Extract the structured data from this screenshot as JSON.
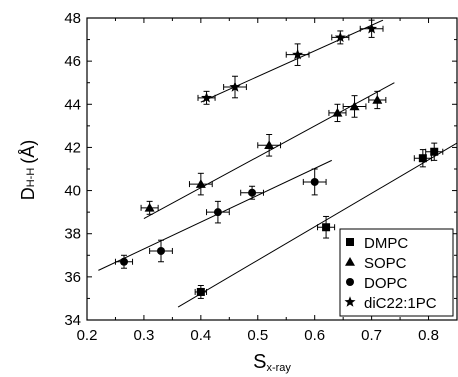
{
  "chart_data": {
    "type": "scatter",
    "xlabel": {
      "main": "S",
      "sub": "x-ray"
    },
    "ylabel": {
      "main": "D",
      "sub": "H-H",
      "unit": "(Å)"
    },
    "xlim": [
      0.2,
      0.85
    ],
    "ylim": [
      34,
      48
    ],
    "xticks": [
      0.2,
      0.3,
      0.4,
      0.5,
      0.6,
      0.7,
      0.8
    ],
    "yticks": [
      34,
      36,
      38,
      40,
      42,
      44,
      46,
      48
    ],
    "x_tick_labels": [
      "0.2",
      "0.3",
      "0.4",
      "0.5",
      "0.6",
      "0.7",
      "0.8"
    ],
    "y_tick_labels": [
      "34",
      "36",
      "38",
      "40",
      "42",
      "44",
      "46",
      "48"
    ],
    "legend_position": "bottom-right",
    "series": [
      {
        "name": "DMPC",
        "marker": "square",
        "points": [
          {
            "x": 0.4,
            "y": 35.3,
            "xerr": 0.01,
            "yerr": 0.3
          },
          {
            "x": 0.62,
            "y": 38.3,
            "xerr": 0.015,
            "yerr": 0.5
          },
          {
            "x": 0.79,
            "y": 41.5,
            "xerr": 0.015,
            "yerr": 0.4
          },
          {
            "x": 0.81,
            "y": 41.8,
            "xerr": 0.015,
            "yerr": 0.4
          }
        ],
        "fit": [
          [
            0.36,
            34.6
          ],
          [
            0.85,
            42.2
          ]
        ]
      },
      {
        "name": "SOPC",
        "marker": "triangle",
        "points": [
          {
            "x": 0.31,
            "y": 39.2,
            "xerr": 0.015,
            "yerr": 0.3
          },
          {
            "x": 0.4,
            "y": 40.3,
            "xerr": 0.02,
            "yerr": 0.5
          },
          {
            "x": 0.52,
            "y": 42.1,
            "xerr": 0.02,
            "yerr": 0.5
          },
          {
            "x": 0.64,
            "y": 43.6,
            "xerr": 0.015,
            "yerr": 0.4
          },
          {
            "x": 0.67,
            "y": 43.9,
            "xerr": 0.02,
            "yerr": 0.5
          },
          {
            "x": 0.71,
            "y": 44.2,
            "xerr": 0.015,
            "yerr": 0.4
          }
        ],
        "fit": [
          [
            0.3,
            38.7
          ],
          [
            0.74,
            45.0
          ]
        ]
      },
      {
        "name": "DOPC",
        "marker": "circle",
        "points": [
          {
            "x": 0.265,
            "y": 36.7,
            "xerr": 0.015,
            "yerr": 0.3
          },
          {
            "x": 0.33,
            "y": 37.2,
            "xerr": 0.02,
            "yerr": 0.5
          },
          {
            "x": 0.43,
            "y": 39.0,
            "xerr": 0.02,
            "yerr": 0.5
          },
          {
            "x": 0.49,
            "y": 39.9,
            "xerr": 0.02,
            "yerr": 0.3
          },
          {
            "x": 0.6,
            "y": 40.4,
            "xerr": 0.02,
            "yerr": 0.6
          }
        ],
        "fit": [
          [
            0.22,
            36.3
          ],
          [
            0.63,
            41.4
          ]
        ]
      },
      {
        "name": "diC22:1PC",
        "marker": "star",
        "points": [
          {
            "x": 0.41,
            "y": 44.3,
            "xerr": 0.015,
            "yerr": 0.3
          },
          {
            "x": 0.46,
            "y": 44.8,
            "xerr": 0.02,
            "yerr": 0.5
          },
          {
            "x": 0.57,
            "y": 46.3,
            "xerr": 0.02,
            "yerr": 0.5
          },
          {
            "x": 0.645,
            "y": 47.1,
            "xerr": 0.015,
            "yerr": 0.3
          },
          {
            "x": 0.7,
            "y": 47.5,
            "xerr": 0.02,
            "yerr": 0.4
          }
        ],
        "fit": [
          [
            0.4,
            44.1
          ],
          [
            0.72,
            47.9
          ]
        ]
      }
    ]
  }
}
